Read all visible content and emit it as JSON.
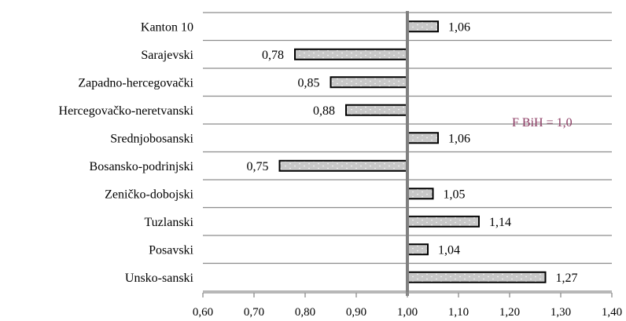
{
  "chart_data": {
    "type": "bar",
    "orientation": "horizontal",
    "categories": [
      "Kanton 10",
      "Sarajevski",
      "Zapadno-hercegovački",
      "Hercegovačko-neretvanski",
      "Srednjobosanski",
      "Bosansko-podrinjski",
      "Zeničko-dobojski",
      "Tuzlanski",
      "Posavski",
      "Unsko-sanski"
    ],
    "values": [
      1.06,
      0.78,
      0.85,
      0.88,
      1.06,
      0.75,
      1.05,
      1.14,
      1.04,
      1.27
    ],
    "value_labels": [
      "1,06",
      "0,78",
      "0,85",
      "0,88",
      "1,06",
      "0,75",
      "1,05",
      "1,14",
      "1,04",
      "1,27"
    ],
    "baseline": 1.0,
    "reference_label": "F BiH = 1,0",
    "xlim": [
      0.6,
      1.4
    ],
    "x_ticks": [
      0.6,
      0.7,
      0.8,
      0.9,
      1.0,
      1.1,
      1.2,
      1.3,
      1.4
    ],
    "x_tick_labels": [
      "0,60",
      "0,70",
      "0,80",
      "0,90",
      "1,00",
      "1,10",
      "1,20",
      "1,30",
      "1,40"
    ],
    "title": "",
    "xlabel": "",
    "ylabel": "",
    "grid": "horizontal",
    "legend": "none",
    "bar_fill": "#c8c8c8",
    "bar_stroke": "#000000",
    "baseline_color": "#808080",
    "grid_color": "#8c8c8c",
    "reference_color": "#8b3a62"
  }
}
